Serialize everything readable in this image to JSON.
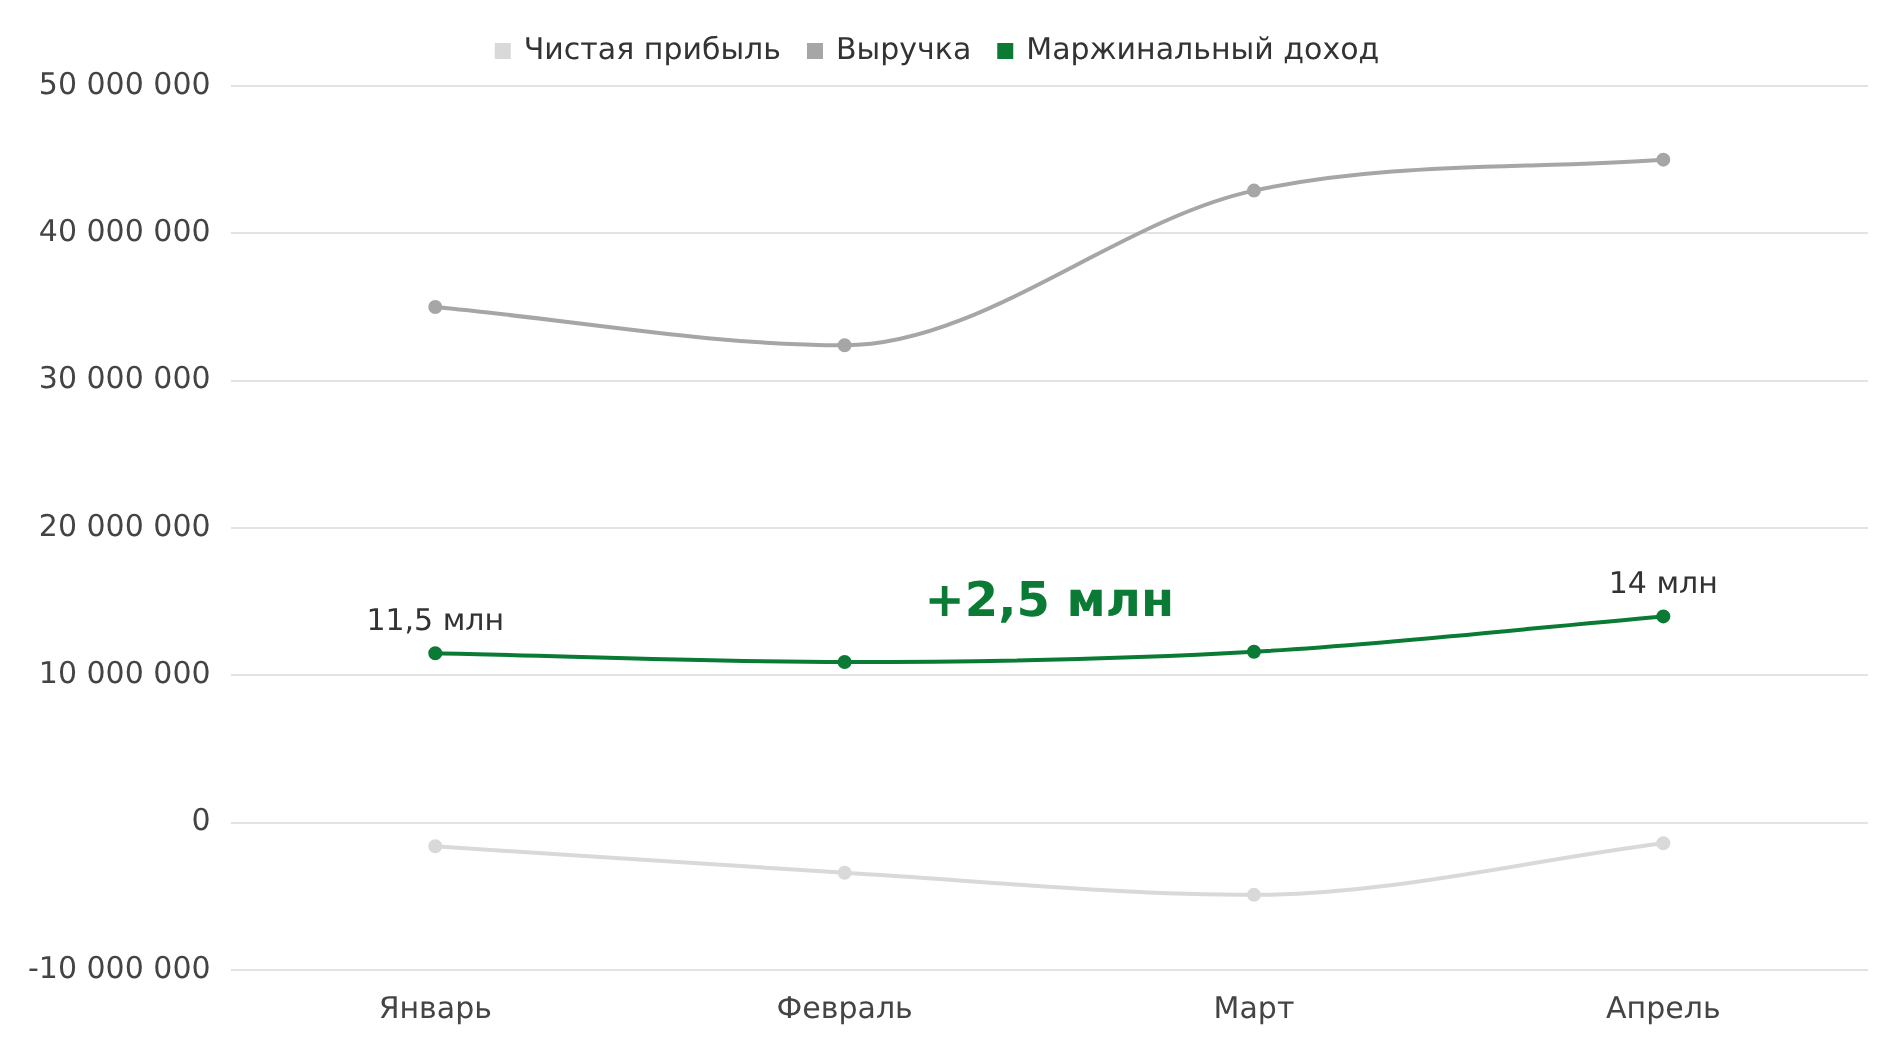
{
  "chart_data": {
    "type": "line",
    "categories": [
      "Январь",
      "Февраль",
      "Март",
      "Апрель"
    ],
    "series": [
      {
        "name": "Чистая прибыль",
        "color": "#d9d9d9",
        "values": [
          -1600000,
          -3400000,
          -4900000,
          -1400000
        ]
      },
      {
        "name": "Выручка",
        "color": "#a6a6a6",
        "values": [
          35000000,
          32400000,
          42900000,
          45000000
        ]
      },
      {
        "name": "Маржинальный доход",
        "color": "#0a7a35",
        "values": [
          11500000,
          10900000,
          11600000,
          14000000
        ]
      }
    ],
    "ylim": [
      -10000000,
      50000000
    ],
    "yticks": [
      -10000000,
      0,
      10000000,
      20000000,
      30000000,
      40000000,
      50000000
    ],
    "grid": "y",
    "legend": "top",
    "marker": "circle",
    "line_style": "solid",
    "annotations": [
      {
        "text": "11,5 млн",
        "x": "Январь",
        "y": 11500000
      },
      {
        "text": "14 млн",
        "x": "Апрель",
        "y": 14000000
      },
      "+2,5 млн"
    ]
  }
}
